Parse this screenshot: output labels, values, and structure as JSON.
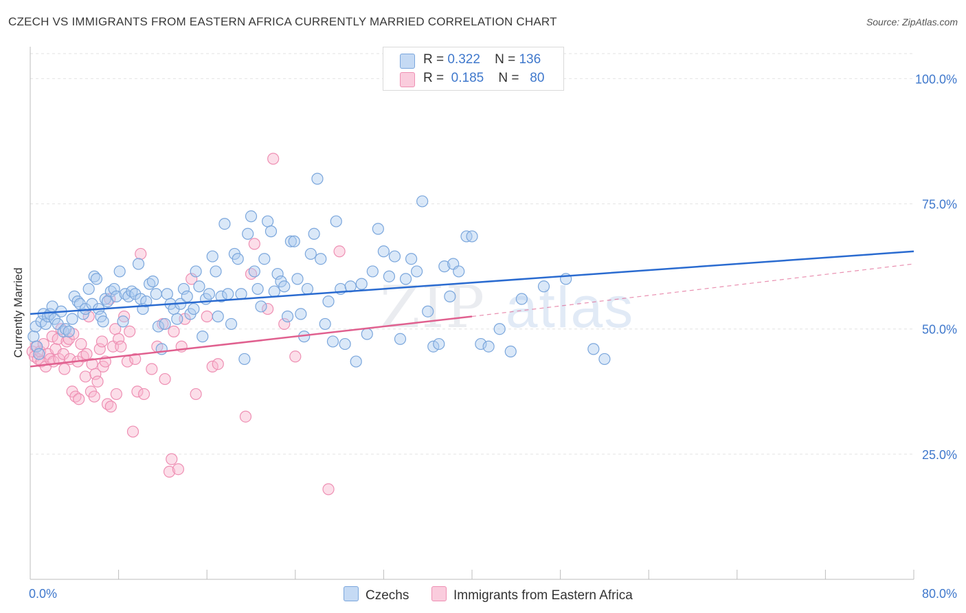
{
  "title": "CZECH VS IMMIGRANTS FROM EASTERN AFRICA CURRENTLY MARRIED CORRELATION CHART",
  "source": "Source: ZipAtlas.com",
  "watermark": {
    "zip": "ZIP",
    "atlas": "atlas"
  },
  "legend_top": [
    {
      "r_label": "R =",
      "r_value": "0.322",
      "n_label": "N =",
      "n_value": "136"
    },
    {
      "r_label": "R =",
      "r_value": "0.185",
      "n_label": "N =",
      "n_value": "80"
    }
  ],
  "colors": {
    "blue_fill": "rgba(173,203,240,0.45)",
    "blue_stroke": "#7aa6dc",
    "blue_line": "#2a6bd0",
    "pink_fill": "rgba(248,182,206,0.45)",
    "pink_stroke": "#ee8fb3",
    "pink_line": "#e0608f",
    "grid": "#e2e2e2",
    "tick_label": "#3f78cc"
  },
  "chart_data": {
    "type": "scatter",
    "title": "CZECH VS IMMIGRANTS FROM EASTERN AFRICA CURRENTLY MARRIED CORRELATION CHART",
    "xlabel": "",
    "ylabel": "Currently Married",
    "xlim": [
      0,
      80
    ],
    "ylim": [
      0,
      105
    ],
    "x_tick_labels": [
      "0.0%",
      "80.0%"
    ],
    "y_ticks": [
      25,
      50,
      75,
      100
    ],
    "y_tick_labels": [
      "25.0%",
      "50.0%",
      "75.0%",
      "100.0%"
    ],
    "grid": true,
    "legend_position": "top-center",
    "series": [
      {
        "name": "Czechs",
        "r": 0.322,
        "n": 136,
        "trend": {
          "x": [
            0,
            80
          ],
          "y": [
            53.0,
            65.5
          ],
          "dashed_to": null
        },
        "points": [
          [
            0.3,
            48.5
          ],
          [
            0.5,
            50.5
          ],
          [
            0.6,
            46.5
          ],
          [
            0.8,
            45.0
          ],
          [
            1.0,
            51.5
          ],
          [
            1.2,
            53.0
          ],
          [
            1.4,
            51.0
          ],
          [
            1.6,
            52.5
          ],
          [
            1.8,
            53.0
          ],
          [
            2.0,
            54.5
          ],
          [
            2.2,
            52.0
          ],
          [
            2.5,
            51.0
          ],
          [
            2.8,
            53.5
          ],
          [
            3.0,
            49.5
          ],
          [
            3.2,
            50.0
          ],
          [
            3.5,
            49.5
          ],
          [
            3.8,
            52.0
          ],
          [
            4.0,
            56.5
          ],
          [
            4.3,
            55.5
          ],
          [
            4.5,
            55.0
          ],
          [
            4.8,
            53.0
          ],
          [
            5.0,
            54.0
          ],
          [
            5.3,
            58.0
          ],
          [
            5.6,
            55.0
          ],
          [
            5.8,
            60.5
          ],
          [
            6.0,
            60.0
          ],
          [
            6.2,
            54.0
          ],
          [
            6.4,
            52.5
          ],
          [
            6.6,
            51.5
          ],
          [
            6.8,
            56.0
          ],
          [
            7.0,
            55.5
          ],
          [
            7.3,
            57.5
          ],
          [
            7.6,
            58.0
          ],
          [
            7.8,
            56.5
          ],
          [
            8.1,
            61.5
          ],
          [
            8.4,
            51.5
          ],
          [
            8.6,
            57.0
          ],
          [
            8.9,
            56.5
          ],
          [
            9.2,
            57.5
          ],
          [
            9.5,
            57.0
          ],
          [
            9.8,
            63.0
          ],
          [
            10.0,
            56.0
          ],
          [
            10.2,
            54.0
          ],
          [
            10.5,
            55.5
          ],
          [
            10.8,
            59.0
          ],
          [
            11.1,
            59.5
          ],
          [
            11.4,
            57.0
          ],
          [
            11.6,
            50.5
          ],
          [
            11.9,
            46.0
          ],
          [
            12.2,
            51.0
          ],
          [
            12.4,
            57.0
          ],
          [
            12.7,
            55.0
          ],
          [
            13.0,
            54.0
          ],
          [
            13.3,
            52.0
          ],
          [
            13.6,
            55.0
          ],
          [
            13.9,
            58.0
          ],
          [
            14.2,
            56.5
          ],
          [
            14.5,
            53.0
          ],
          [
            14.8,
            54.0
          ],
          [
            15.0,
            61.5
          ],
          [
            15.3,
            58.5
          ],
          [
            15.6,
            48.5
          ],
          [
            15.9,
            56.0
          ],
          [
            16.2,
            57.0
          ],
          [
            16.5,
            64.5
          ],
          [
            16.8,
            61.5
          ],
          [
            17.0,
            52.5
          ],
          [
            17.3,
            56.5
          ],
          [
            17.6,
            71.0
          ],
          [
            17.9,
            57.0
          ],
          [
            18.2,
            51.0
          ],
          [
            18.5,
            65.0
          ],
          [
            18.8,
            64.0
          ],
          [
            19.1,
            57.0
          ],
          [
            19.4,
            44.0
          ],
          [
            19.7,
            69.0
          ],
          [
            20.0,
            72.5
          ],
          [
            20.3,
            61.5
          ],
          [
            20.6,
            58.0
          ],
          [
            20.9,
            54.5
          ],
          [
            21.2,
            64.0
          ],
          [
            21.5,
            71.5
          ],
          [
            21.8,
            69.5
          ],
          [
            22.1,
            57.5
          ],
          [
            22.4,
            61.0
          ],
          [
            22.7,
            59.5
          ],
          [
            23.0,
            58.5
          ],
          [
            23.3,
            52.5
          ],
          [
            23.6,
            67.5
          ],
          [
            23.9,
            67.5
          ],
          [
            24.2,
            60.0
          ],
          [
            24.5,
            53.0
          ],
          [
            24.8,
            48.5
          ],
          [
            25.1,
            58.0
          ],
          [
            25.4,
            65.0
          ],
          [
            25.7,
            69.0
          ],
          [
            26.0,
            80.0
          ],
          [
            26.3,
            64.0
          ],
          [
            26.7,
            51.0
          ],
          [
            27.0,
            55.5
          ],
          [
            27.4,
            47.5
          ],
          [
            27.7,
            71.5
          ],
          [
            28.1,
            58.0
          ],
          [
            28.5,
            47.0
          ],
          [
            29.0,
            58.5
          ],
          [
            29.5,
            43.5
          ],
          [
            30.0,
            59.0
          ],
          [
            30.5,
            49.0
          ],
          [
            31.0,
            61.5
          ],
          [
            31.5,
            70.0
          ],
          [
            32.0,
            65.5
          ],
          [
            32.5,
            60.5
          ],
          [
            33.0,
            64.5
          ],
          [
            33.5,
            48.0
          ],
          [
            34.0,
            60.0
          ],
          [
            34.5,
            64.0
          ],
          [
            35.0,
            61.5
          ],
          [
            35.5,
            75.5
          ],
          [
            36.0,
            53.5
          ],
          [
            36.5,
            46.5
          ],
          [
            37.0,
            47.0
          ],
          [
            37.5,
            62.5
          ],
          [
            38.0,
            56.5
          ],
          [
            38.3,
            63.0
          ],
          [
            38.8,
            61.5
          ],
          [
            39.5,
            68.5
          ],
          [
            40.0,
            68.5
          ],
          [
            40.8,
            47.0
          ],
          [
            41.5,
            46.5
          ],
          [
            42.5,
            50.0
          ],
          [
            43.5,
            45.5
          ],
          [
            44.5,
            56.0
          ],
          [
            46.5,
            58.5
          ],
          [
            48.5,
            60.0
          ],
          [
            51.0,
            46.0
          ],
          [
            52.0,
            44.0
          ]
        ]
      },
      {
        "name": "Immigrants from Eastern Africa",
        "r": 0.185,
        "n": 80,
        "trend": {
          "x": [
            0,
            40
          ],
          "y": [
            42.5,
            52.5
          ],
          "dashed_to": [
            80,
            63.0
          ]
        },
        "points": [
          [
            0.2,
            45.5
          ],
          [
            0.4,
            44.5
          ],
          [
            0.5,
            46.5
          ],
          [
            0.7,
            44.0
          ],
          [
            0.9,
            45.5
          ],
          [
            1.0,
            43.5
          ],
          [
            1.2,
            47.0
          ],
          [
            1.4,
            42.5
          ],
          [
            1.6,
            45.0
          ],
          [
            1.8,
            44.0
          ],
          [
            2.0,
            48.5
          ],
          [
            2.1,
            43.5
          ],
          [
            2.3,
            46.0
          ],
          [
            2.5,
            48.0
          ],
          [
            2.6,
            44.0
          ],
          [
            2.8,
            50.0
          ],
          [
            3.0,
            45.0
          ],
          [
            3.1,
            42.0
          ],
          [
            3.3,
            47.5
          ],
          [
            3.5,
            48.0
          ],
          [
            3.6,
            44.0
          ],
          [
            3.8,
            37.5
          ],
          [
            3.9,
            49.0
          ],
          [
            4.1,
            36.5
          ],
          [
            4.3,
            43.5
          ],
          [
            4.4,
            36.0
          ],
          [
            4.6,
            47.0
          ],
          [
            4.8,
            44.5
          ],
          [
            5.0,
            40.5
          ],
          [
            5.1,
            45.0
          ],
          [
            5.3,
            52.5
          ],
          [
            5.5,
            37.5
          ],
          [
            5.6,
            43.0
          ],
          [
            5.8,
            36.5
          ],
          [
            5.9,
            41.0
          ],
          [
            6.1,
            39.5
          ],
          [
            6.3,
            46.0
          ],
          [
            6.5,
            47.5
          ],
          [
            6.6,
            42.5
          ],
          [
            6.8,
            43.5
          ],
          [
            7.0,
            35.0
          ],
          [
            7.2,
            56.0
          ],
          [
            7.3,
            34.5
          ],
          [
            7.5,
            46.5
          ],
          [
            7.7,
            50.0
          ],
          [
            7.8,
            37.0
          ],
          [
            8.0,
            48.0
          ],
          [
            8.2,
            46.5
          ],
          [
            8.5,
            52.5
          ],
          [
            8.8,
            43.5
          ],
          [
            9.0,
            49.5
          ],
          [
            9.3,
            29.5
          ],
          [
            9.5,
            44.0
          ],
          [
            9.7,
            37.5
          ],
          [
            10.0,
            65.0
          ],
          [
            10.3,
            37.0
          ],
          [
            11.0,
            42.0
          ],
          [
            11.5,
            46.5
          ],
          [
            12.0,
            51.0
          ],
          [
            12.2,
            40.0
          ],
          [
            12.6,
            21.5
          ],
          [
            12.8,
            24.0
          ],
          [
            13.0,
            49.5
          ],
          [
            13.4,
            22.0
          ],
          [
            13.7,
            46.5
          ],
          [
            14.0,
            52.0
          ],
          [
            14.6,
            60.0
          ],
          [
            15.0,
            37.0
          ],
          [
            16.0,
            52.5
          ],
          [
            16.5,
            42.5
          ],
          [
            17.0,
            43.0
          ],
          [
            19.5,
            32.5
          ],
          [
            20.0,
            61.0
          ],
          [
            20.3,
            67.0
          ],
          [
            21.5,
            54.0
          ],
          [
            22.0,
            84.0
          ],
          [
            23.0,
            51.0
          ],
          [
            24.0,
            44.5
          ],
          [
            27.0,
            18.0
          ],
          [
            28.0,
            65.5
          ]
        ]
      }
    ]
  }
}
